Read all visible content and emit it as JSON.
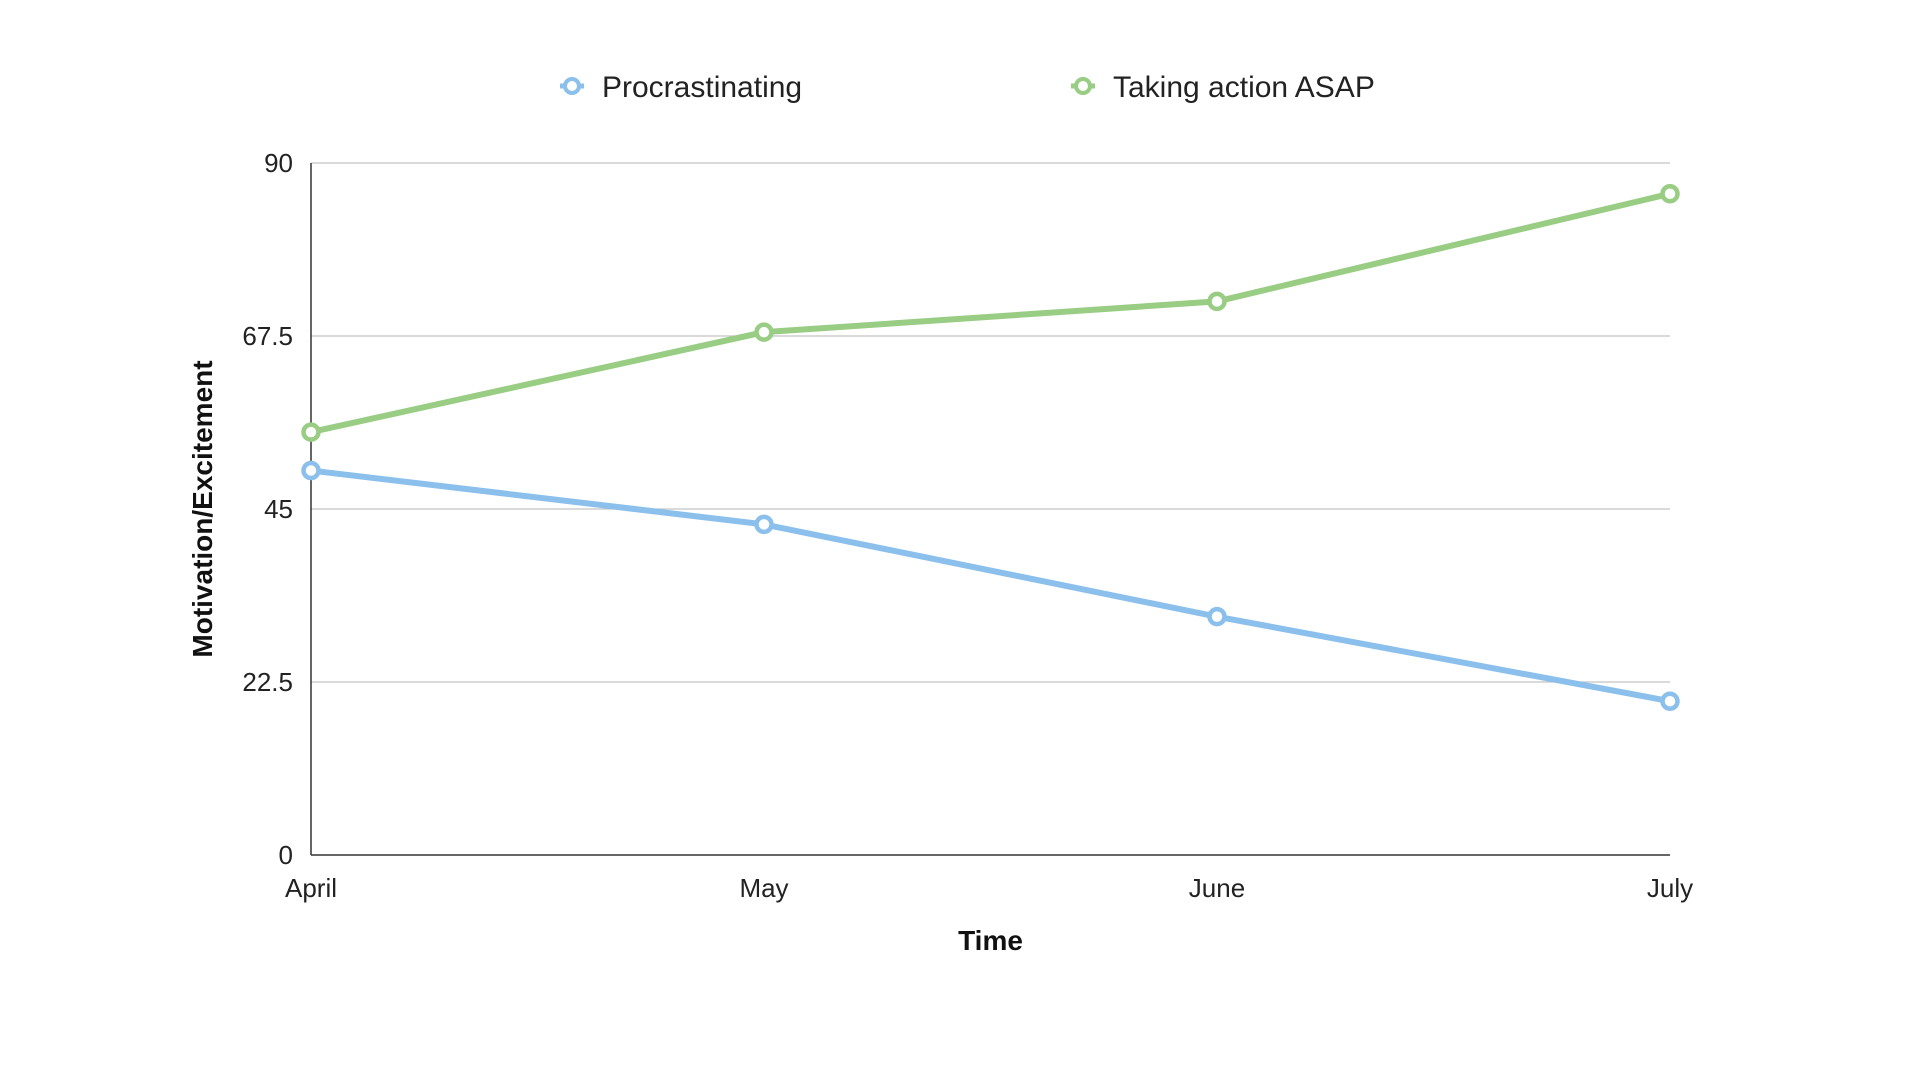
{
  "chart_data": {
    "type": "line",
    "title": "",
    "xlabel": "Time",
    "ylabel": "Motivation/Excitement",
    "categories": [
      "April",
      "May",
      "June",
      "July"
    ],
    "ylim": [
      0,
      90
    ],
    "yticks": [
      "0",
      "22.5",
      "45",
      "67.5",
      "90"
    ],
    "ytick_values": [
      0,
      22.5,
      45,
      67.5,
      90
    ],
    "grid": true,
    "legend_position": "top",
    "series": [
      {
        "name": "Procrastinating",
        "color": "#8bbfec",
        "values": [
          50,
          43,
          31,
          20
        ]
      },
      {
        "name": "Taking action ASAP",
        "color": "#98cd83",
        "values": [
          55,
          68,
          72,
          86
        ]
      }
    ]
  }
}
